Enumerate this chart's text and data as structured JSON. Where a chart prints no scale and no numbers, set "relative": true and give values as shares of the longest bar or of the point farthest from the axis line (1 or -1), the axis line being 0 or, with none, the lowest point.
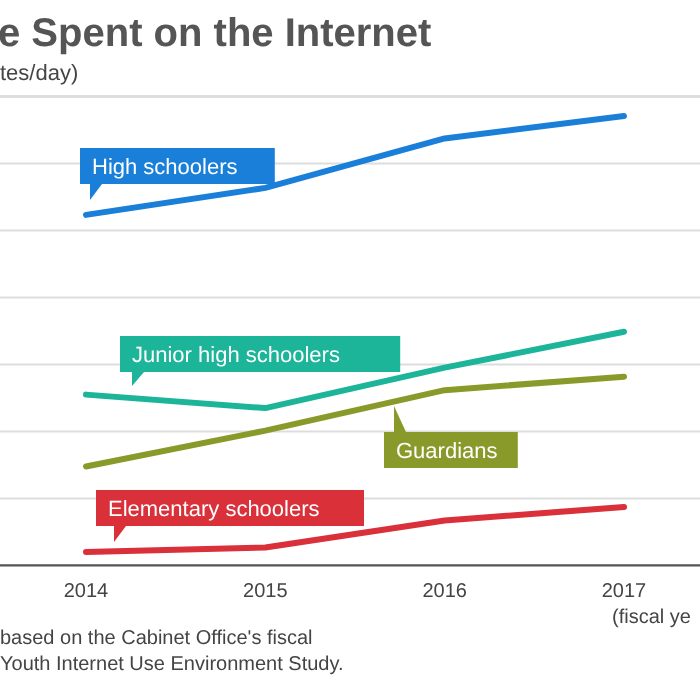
{
  "chart_data": {
    "type": "line",
    "title": "e Spent on the Internet",
    "ylabel": "tes/day)",
    "xlabel": "(fiscal ye",
    "categories": [
      "2014",
      "2015",
      "2016",
      "2017"
    ],
    "relative": true,
    "grid": "y",
    "marker": "none",
    "line_style": "solid",
    "series": [
      {
        "name": "High schoolers",
        "color": "#1a7fd8",
        "values": [
          0.78,
          0.84,
          0.95,
          1
        ]
      },
      {
        "name": "Junior high schoolers",
        "color": "#1cb59a",
        "values": [
          0.38,
          0.35,
          0.44,
          0.52
        ]
      },
      {
        "name": "Guardians",
        "color": "#8a9a2a",
        "values": [
          0.22,
          0.3,
          0.39,
          0.42
        ]
      },
      {
        "name": "Elementary schoolers",
        "color": "#d9303a",
        "values": [
          0.03,
          0.04,
          0.1,
          0.13
        ]
      }
    ],
    "annotations": [
      "based on the Cabinet Office's fiscal",
      "Youth Internet Use Environment Study."
    ]
  }
}
